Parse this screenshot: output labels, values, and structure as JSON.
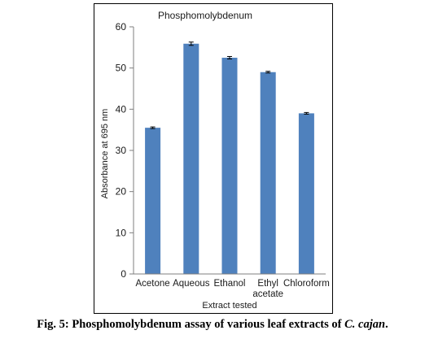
{
  "chart_data": {
    "type": "bar",
    "title": "Phosphomolybdenum",
    "xlabel": "Extract tested",
    "ylabel": "Absorbance at 695 nm",
    "categories": [
      [
        "Acetone"
      ],
      [
        "Aqueous"
      ],
      [
        "Ethanol"
      ],
      [
        "Ethyl",
        "acetate"
      ],
      [
        "Chloroform"
      ]
    ],
    "values": [
      35.5,
      55.9,
      52.5,
      49.0,
      39.0
    ],
    "errors": [
      0.2,
      0.4,
      0.3,
      0.2,
      0.2
    ],
    "ylim": [
      0,
      60
    ],
    "yticks": [
      0,
      10,
      20,
      30,
      40,
      50,
      60
    ],
    "grid": false,
    "legend": "none",
    "bar_color": "#4f81bd"
  },
  "caption": {
    "prefix": "Fig. 5: Phosphomolybdenum assay of various leaf extracts of ",
    "species": "C. cajan",
    "suffix": "."
  }
}
